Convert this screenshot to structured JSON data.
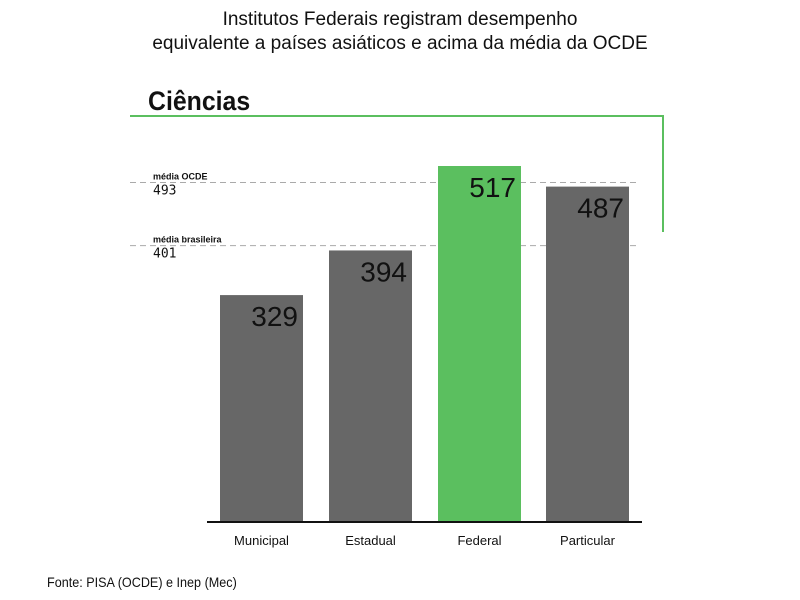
{
  "title_line1": "Institutos Federais registram desempenho",
  "title_line2": "equivalente a países asiáticos e acima da média da OCDE",
  "section_title": "Ciências",
  "source": "Fonte: PISA (OCDE) e Inep (Mec)",
  "colors": {
    "bar": "#676767",
    "highlight": "#5bbf5f",
    "accent_line": "#5bbf5f"
  },
  "chart_data": {
    "type": "bar",
    "title": "Ciências",
    "categories": [
      "Municipal",
      "Estadual",
      "Federal",
      "Particular"
    ],
    "values": [
      329,
      394,
      517,
      487
    ],
    "highlight": "Federal",
    "ylim": [
      0,
      517
    ],
    "grid": false,
    "reference_lines": [
      {
        "label": "média OCDE",
        "value": 493
      },
      {
        "label": "média brasileira",
        "value": 401
      }
    ]
  }
}
